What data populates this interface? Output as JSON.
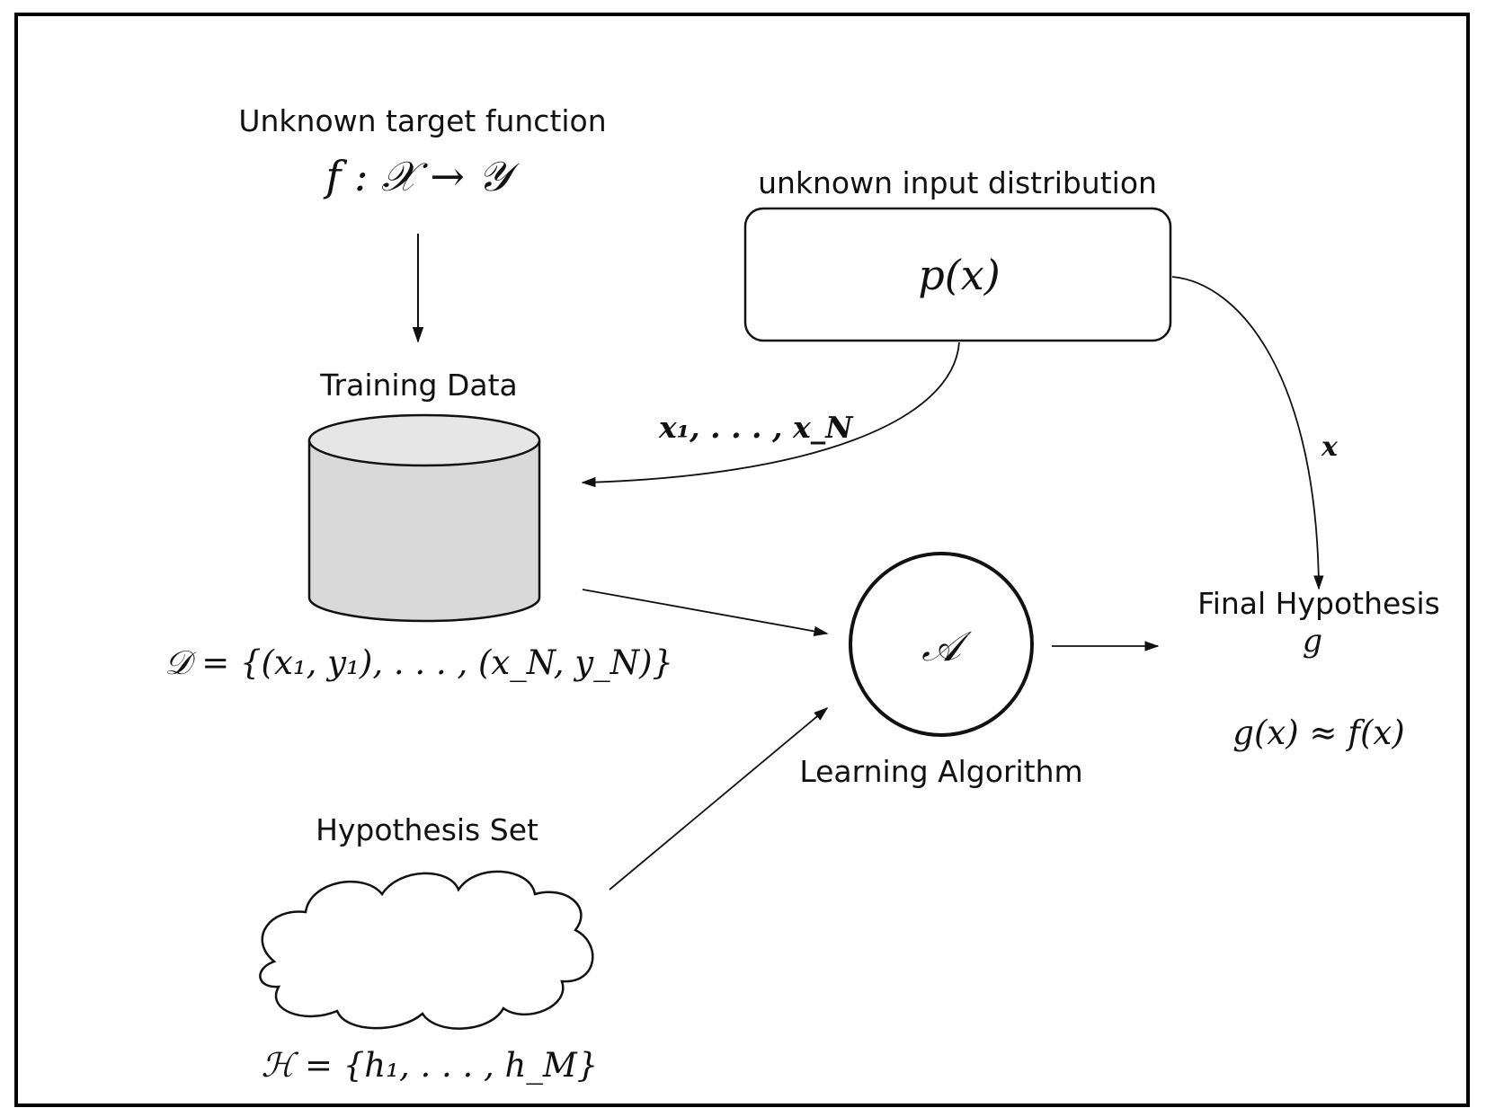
{
  "target": {
    "title": "Unknown target function",
    "formula": "f : 𝒳 → 𝒴"
  },
  "distribution": {
    "title": "unknown input distribution",
    "formula": "p(x)"
  },
  "training_data": {
    "title": "Training Data",
    "formula": "𝒟 = {(x₁, y₁), . . . , (x_N, y_N)}",
    "samples_label": "x₁, . . . , x_N"
  },
  "algorithm": {
    "symbol": "𝒜",
    "title": "Learning Algorithm"
  },
  "hypothesis_set": {
    "title": "Hypothesis Set",
    "formula": "ℋ = {h₁, . . . , h_M}"
  },
  "final_hypothesis": {
    "title": "Final Hypothesis",
    "symbol": "g",
    "approx": "g(x) ≈ f(x)",
    "input_label": "x"
  },
  "colors": {
    "cylinder_fill": "#d9d9d9",
    "cylinder_top": "#e6e6e6",
    "stroke": "#111111"
  }
}
